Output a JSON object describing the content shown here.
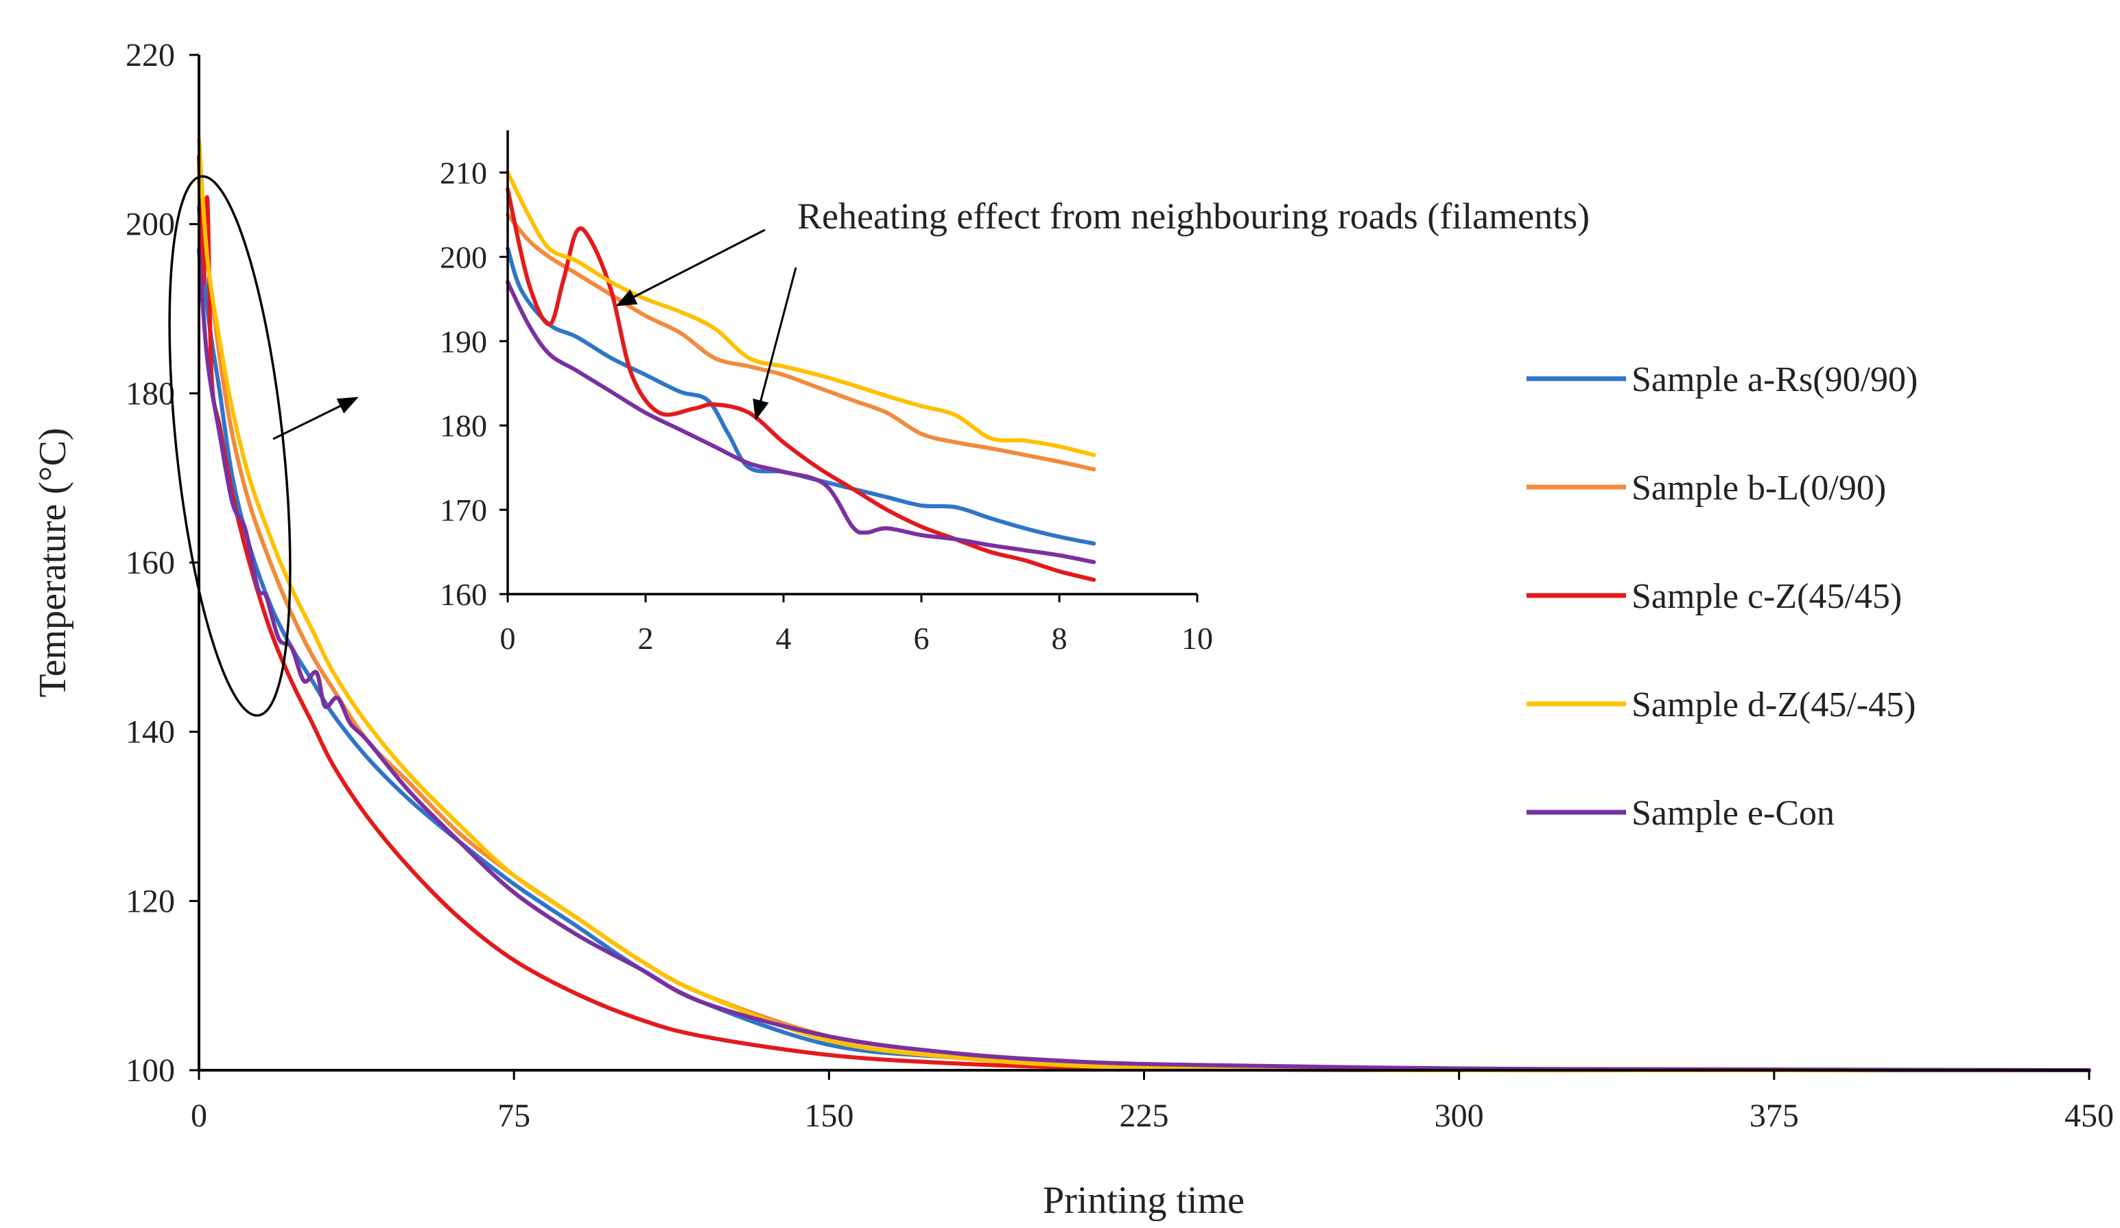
{
  "chart_data": [
    {
      "id": "main",
      "type": "line",
      "title": "",
      "xlabel": "Printing time",
      "ylabel": "Temperature (°C)",
      "xlim": [
        0,
        450
      ],
      "ylim": [
        100,
        220
      ],
      "xticks": [
        0,
        75,
        150,
        225,
        300,
        375,
        450
      ],
      "yticks": [
        100,
        120,
        140,
        160,
        180,
        200,
        220
      ],
      "grid": false,
      "legend_position": "right",
      "series": [
        {
          "name": "Sample a-Rs(90/90)",
          "color": "#2E75C8",
          "x": [
            0,
            2,
            5,
            8,
            12,
            17,
            22,
            27,
            32,
            40,
            50,
            62,
            75,
            90,
            105,
            120,
            150,
            180,
            210,
            240,
            300,
            360,
            450
          ],
          "y": [
            202,
            190,
            180,
            170,
            162,
            155,
            150,
            146,
            142,
            137,
            132,
            127,
            122,
            117,
            112,
            108,
            103,
            101.5,
            100.7,
            100.3,
            100.1,
            100,
            100
          ]
        },
        {
          "name": "Sample b-L(0/90)",
          "color": "#F28A3C",
          "x": [
            0,
            2,
            5,
            8,
            12,
            17,
            22,
            27,
            32,
            40,
            50,
            62,
            75,
            90,
            105,
            120,
            150,
            180,
            210,
            240,
            300,
            360,
            450
          ],
          "y": [
            205,
            196,
            184,
            175,
            167,
            160,
            154,
            149,
            145,
            139,
            134,
            128,
            123,
            118,
            113,
            109,
            104,
            102,
            101,
            100.5,
            100.2,
            100,
            100
          ]
        },
        {
          "name": "Sample c-Z(45/45)",
          "color": "#E31A1C",
          "x": [
            0,
            1,
            2,
            3,
            5,
            8,
            12,
            17,
            22,
            27,
            32,
            40,
            50,
            62,
            75,
            90,
            105,
            120,
            150,
            180,
            210,
            240,
            300,
            360,
            450
          ],
          "y": [
            208,
            193,
            203,
            182,
            176,
            168,
            160,
            152,
            146,
            141,
            136,
            130,
            124,
            118,
            113,
            109,
            106,
            104,
            101.8,
            100.8,
            100.3,
            100.1,
            100,
            100,
            100
          ]
        },
        {
          "name": "Sample d-Z(45/-45)",
          "color": "#FFC000",
          "x": [
            0,
            2,
            5,
            8,
            12,
            17,
            22,
            27,
            32,
            40,
            50,
            62,
            75,
            90,
            105,
            120,
            150,
            180,
            210,
            240,
            300,
            360,
            450
          ],
          "y": [
            210,
            196,
            186,
            178,
            170,
            163,
            157,
            152,
            147,
            141,
            135,
            129,
            123,
            118,
            113,
            109,
            103.5,
            101.5,
            100.5,
            100.2,
            100,
            100,
            100
          ]
        },
        {
          "name": "Sample e-Con",
          "color": "#7B30A0",
          "x": [
            0,
            2,
            5,
            8,
            11,
            14,
            16,
            19,
            22,
            25,
            28,
            30,
            33,
            36,
            40,
            50,
            62,
            75,
            90,
            105,
            120,
            150,
            180,
            210,
            240,
            300,
            360,
            450
          ],
          "y": [
            197,
            184,
            175,
            167,
            164,
            157,
            156,
            151,
            150,
            146,
            147,
            143,
            144,
            141,
            139,
            133,
            127,
            121,
            116,
            112,
            108,
            104,
            102,
            101,
            100.6,
            100.2,
            100.1,
            100
          ]
        }
      ],
      "annotations": []
    },
    {
      "id": "inset",
      "type": "line",
      "title": "",
      "xlabel": "",
      "ylabel": "",
      "xlim": [
        0,
        10
      ],
      "ylim": [
        160,
        215
      ],
      "xticks": [
        0,
        2,
        4,
        6,
        8,
        10
      ],
      "yticks": [
        160,
        170,
        180,
        190,
        200,
        210
      ],
      "grid": false,
      "series": [
        {
          "name": "Sample a-Rs(90/90)",
          "color": "#2E75C8",
          "x": [
            0,
            0.2,
            0.6,
            1,
            1.5,
            2,
            2.5,
            2.9,
            3.2,
            3.5,
            4,
            4.5,
            5,
            5.5,
            6,
            6.5,
            7,
            7.5,
            8,
            8.5
          ],
          "y": [
            201,
            196,
            192,
            190.5,
            188,
            186,
            184,
            183,
            179,
            175,
            174.5,
            173.5,
            172.5,
            171.5,
            170.5,
            170.3,
            169,
            167.8,
            166.8,
            166
          ]
        },
        {
          "name": "Sample b-L(0/90)",
          "color": "#F28A3C",
          "x": [
            0,
            0.3,
            0.6,
            1,
            1.5,
            2,
            2.5,
            3,
            3.5,
            4,
            4.5,
            5,
            5.5,
            6,
            6.5,
            7,
            7.5,
            8,
            8.5
          ],
          "y": [
            205,
            202,
            200,
            198,
            195.5,
            193,
            191,
            188,
            187,
            186,
            184.5,
            183,
            181.5,
            179,
            178,
            177.3,
            176.5,
            175.7,
            174.8
          ]
        },
        {
          "name": "Sample c-Z(45/45)",
          "color": "#E31A1C",
          "x": [
            0,
            0.3,
            0.6,
            0.8,
            1,
            1.2,
            1.5,
            1.8,
            2.2,
            2.7,
            3,
            3.5,
            4,
            4.5,
            5,
            5.5,
            6,
            6.5,
            7,
            7.5,
            8,
            8.5
          ],
          "y": [
            208,
            197,
            192,
            197,
            203,
            202,
            196,
            186,
            181.5,
            182,
            182.5,
            181.5,
            178,
            175,
            172.5,
            170,
            168,
            166.5,
            165,
            164,
            162.7,
            161.7
          ]
        },
        {
          "name": "Sample d-Z(45/-45)",
          "color": "#FFC000",
          "x": [
            0,
            0.3,
            0.6,
            1,
            1.5,
            2,
            2.5,
            3,
            3.5,
            4,
            4.5,
            5,
            5.5,
            6,
            6.5,
            7,
            7.5,
            8,
            8.5
          ],
          "y": [
            210,
            205,
            201,
            199.5,
            197,
            195,
            193.5,
            191.5,
            188,
            187,
            186,
            184.8,
            183.5,
            182.3,
            181.2,
            178.5,
            178.2,
            177.5,
            176.5
          ]
        },
        {
          "name": "Sample e-Con",
          "color": "#7B30A0",
          "x": [
            0,
            0.3,
            0.6,
            1,
            1.5,
            2,
            2.5,
            3,
            3.5,
            4,
            4.6,
            5,
            5.2,
            5.5,
            6,
            6.5,
            7,
            7.5,
            8,
            8.5
          ],
          "y": [
            197,
            192,
            188.5,
            186.5,
            184,
            181.5,
            179.5,
            177.5,
            175.5,
            174.5,
            173,
            168,
            167.3,
            167.8,
            167,
            166.5,
            165.8,
            165.2,
            164.6,
            163.8
          ]
        }
      ],
      "annotations": [
        {
          "text": "Reheating effect from neighbouring roads (filaments)"
        }
      ]
    }
  ]
}
